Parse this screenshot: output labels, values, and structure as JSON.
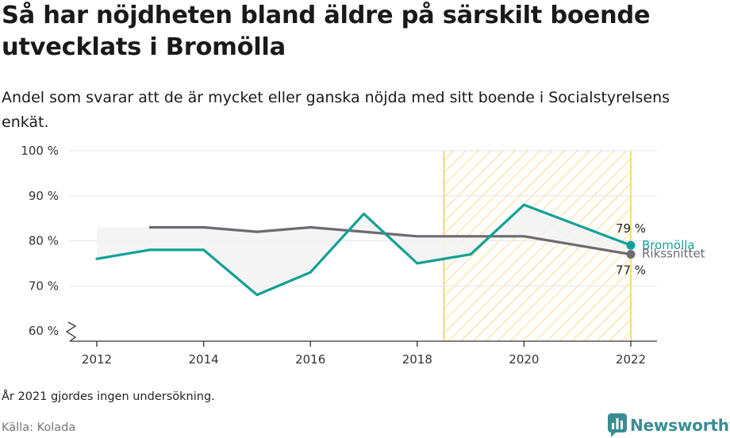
{
  "title": "Så har nöjdheten bland äldre på särskilt boende utvecklats i Bromölla",
  "subtitle": "Andel som svarar att de är mycket eller ganska nöjda med sitt boende i Socialstyrelsens enkät.",
  "note": "År 2021 gjordes ingen undersökning.",
  "source": "Källa: Kolada",
  "logo_text": "Newsworthy",
  "colors": {
    "bromolla": "#12a195",
    "riks": "#6d6a70",
    "highlight": "#f5c242",
    "grid": "#e3e3e3",
    "band": "#f2f2f2"
  },
  "chart_data": {
    "type": "line",
    "x": [
      2012,
      2013,
      2014,
      2015,
      2016,
      2017,
      2018,
      2019,
      2020,
      2022
    ],
    "series": [
      {
        "name": "Bromölla",
        "values": [
          76,
          78,
          78,
          68,
          73,
          86,
          75,
          77,
          88,
          79
        ]
      },
      {
        "name": "Rikssnittet",
        "values": [
          null,
          83,
          83,
          82,
          83,
          82,
          81,
          81,
          81,
          77
        ]
      }
    ],
    "xticks": [
      2012,
      2014,
      2016,
      2018,
      2020,
      2022
    ],
    "xlim": [
      2012,
      2022
    ],
    "yticks": [
      60,
      70,
      80,
      90,
      100
    ],
    "ytick_labels": [
      "60 %",
      "70 %",
      "80 %",
      "90 %",
      "100 %"
    ],
    "ylim": [
      60,
      100
    ],
    "axis_break": true,
    "highlight_range": [
      2018.5,
      2022
    ],
    "end_labels": {
      "Bromölla": "79 %",
      "Rikssnittet": "77 %"
    },
    "grid": true
  }
}
